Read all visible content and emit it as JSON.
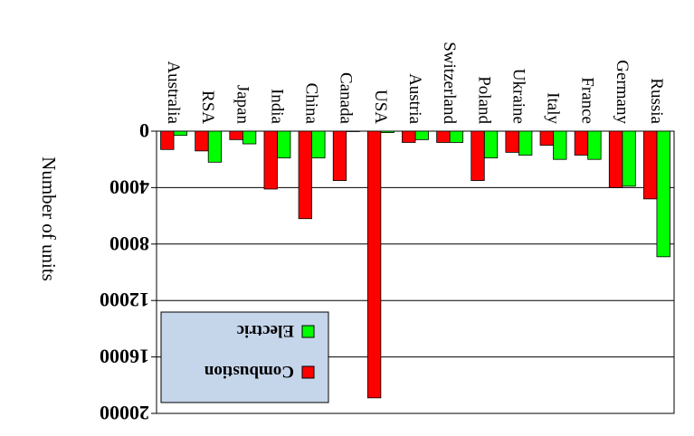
{
  "chart_data": {
    "type": "bar",
    "orientation": "rendered upside-down and mirrored (rotated 180°)",
    "categories": [
      "Russia",
      "Germany",
      "France",
      "Italy",
      "Ukraine",
      "Poland",
      "Switzerland",
      "Austria",
      "USA",
      "Canada",
      "China",
      "India",
      "Japan",
      "RSA",
      "Australia"
    ],
    "series": [
      {
        "name": "Electric",
        "color": "#00ff00",
        "values": [
          8900,
          3900,
          2000,
          2000,
          1700,
          1900,
          800,
          600,
          100,
          0,
          1900,
          1900,
          900,
          2200,
          300
        ]
      },
      {
        "name": "Combustion",
        "color": "#ff0000",
        "values": [
          4800,
          4000,
          1700,
          1000,
          1500,
          3500,
          800,
          800,
          18900,
          3500,
          6200,
          4100,
          600,
          1400,
          1300
        ]
      }
    ],
    "ylabel": "Number of units",
    "yticks": [
      "0",
      "4000",
      "8000",
      "12000",
      "16000",
      "20000"
    ],
    "ylim": [
      0,
      20000
    ],
    "grid": true,
    "legend": "bottom-left",
    "legend_background": "#c5d5ea"
  }
}
